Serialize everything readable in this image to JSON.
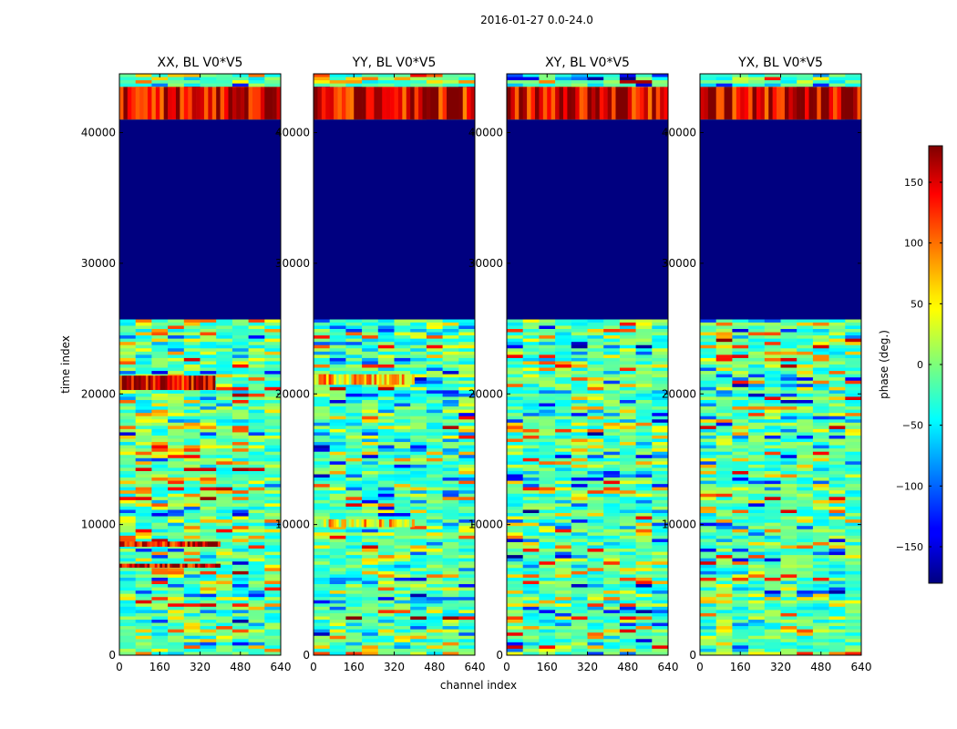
{
  "figure": {
    "suptitle": "2016-01-27 0.0-24.0"
  },
  "chart_data": [
    {
      "type": "heatmap",
      "title": "XX, BL V0*V5",
      "xlabel": "channel index",
      "ylabel": "time index",
      "xlim": [
        0,
        640
      ],
      "ylim": [
        0,
        44500
      ],
      "xticks": [
        0,
        160,
        320,
        480,
        640
      ],
      "yticks": [
        0,
        10000,
        20000,
        30000,
        40000
      ],
      "uniform_bands": [
        {
          "ymin": 25700,
          "ymax": 41000,
          "value": -180
        }
      ],
      "warm_bands": [
        {
          "ymin": 20300,
          "ymax": 21400,
          "xmin": 0,
          "xmax": 380,
          "value": 150
        },
        {
          "ymin": 41000,
          "ymax": 43500,
          "xmin": 0,
          "xmax": 640,
          "value": 150
        },
        {
          "ymin": 8300,
          "ymax": 8700,
          "xmin": 0,
          "xmax": 400,
          "value": 150
        },
        {
          "ymin": 6700,
          "ymax": 7000,
          "xmin": 0,
          "xmax": 400,
          "value": 150
        }
      ]
    },
    {
      "type": "heatmap",
      "title": "YY, BL V0*V5",
      "xlabel": "channel index",
      "ylabel": "",
      "xlim": [
        0,
        640
      ],
      "ylim": [
        0,
        44500
      ],
      "xticks": [
        0,
        160,
        320,
        480,
        640
      ],
      "yticks": [
        0,
        10000,
        20000,
        30000,
        40000
      ],
      "uniform_bands": [
        {
          "ymin": 25700,
          "ymax": 41000,
          "value": -180
        }
      ],
      "warm_bands": [
        {
          "ymin": 20700,
          "ymax": 21500,
          "xmin": 0,
          "xmax": 400,
          "value": 60
        },
        {
          "ymin": 41000,
          "ymax": 43500,
          "xmin": 0,
          "xmax": 640,
          "value": 150
        },
        {
          "ymin": 9800,
          "ymax": 10400,
          "xmin": 0,
          "xmax": 400,
          "value": 50
        }
      ]
    },
    {
      "type": "heatmap",
      "title": "XY, BL V0*V5",
      "xlabel": "channel index",
      "ylabel": "",
      "xlim": [
        0,
        640
      ],
      "ylim": [
        0,
        44500
      ],
      "xticks": [
        0,
        160,
        320,
        480,
        640
      ],
      "yticks": [
        0,
        10000,
        20000,
        30000,
        40000
      ],
      "uniform_bands": [
        {
          "ymin": 25700,
          "ymax": 41000,
          "value": -180
        }
      ],
      "warm_bands": [
        {
          "ymin": 41000,
          "ymax": 43500,
          "xmin": 0,
          "xmax": 640,
          "value": 150
        }
      ]
    },
    {
      "type": "heatmap",
      "title": "YX, BL V0*V5",
      "xlabel": "channel index",
      "ylabel": "",
      "xlim": [
        0,
        640
      ],
      "ylim": [
        0,
        44500
      ],
      "xticks": [
        0,
        160,
        320,
        480,
        640
      ],
      "yticks": [
        0,
        10000,
        20000,
        30000,
        40000
      ],
      "uniform_bands": [
        {
          "ymin": 25700,
          "ymax": 41000,
          "value": -180
        }
      ],
      "warm_bands": [
        {
          "ymin": 41000,
          "ymax": 43500,
          "xmin": 0,
          "xmax": 640,
          "value": 150
        }
      ]
    }
  ],
  "colorbar": {
    "label": "phase (deg.)",
    "colormap": "jet",
    "range": [
      -180,
      180
    ],
    "ticks": [
      150,
      100,
      50,
      0,
      -50,
      -100,
      -150
    ],
    "tick_labels": [
      "150",
      "100",
      "50",
      "0",
      "−50",
      "−100",
      "−150"
    ]
  }
}
